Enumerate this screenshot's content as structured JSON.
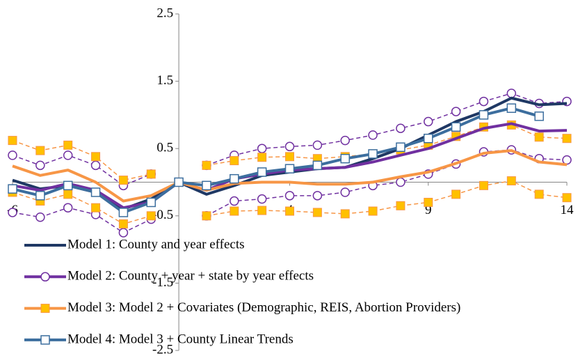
{
  "chart_data": {
    "type": "line",
    "x": [
      -6,
      -5,
      -4,
      -3,
      -2,
      -1,
      0,
      1,
      2,
      3,
      4,
      5,
      6,
      7,
      8,
      9,
      10,
      11,
      12,
      13,
      14
    ],
    "xlim": [
      -6,
      14
    ],
    "xticks": [
      -6,
      4,
      9,
      14
    ],
    "ylim": [
      -2.5,
      2.5
    ],
    "yticks": [
      -2.5,
      -1.5,
      -0.5,
      0.5,
      1.5,
      2.5
    ],
    "series": [
      {
        "name": "Model 1: County and year effects",
        "color": "#1f3864",
        "marker": "none",
        "values": [
          0.03,
          -0.1,
          -0.05,
          -0.15,
          -0.4,
          -0.25,
          0,
          -0.18,
          -0.05,
          0.1,
          0.15,
          0.2,
          0.22,
          0.35,
          0.5,
          0.7,
          0.9,
          1.05,
          1.25,
          1.15,
          1.17
        ]
      },
      {
        "name": "Model 2: County + year + state by year effects",
        "color": "#7030a0",
        "marker": "circle",
        "values": [
          -0.05,
          -0.12,
          -0.02,
          -0.12,
          -0.38,
          -0.3,
          0,
          -0.12,
          0.05,
          0.12,
          0.18,
          0.2,
          0.22,
          0.3,
          0.4,
          0.5,
          0.65,
          0.8,
          0.87,
          0.76,
          0.77
        ],
        "ci_upper": [
          0.4,
          0.25,
          0.4,
          0.25,
          -0.05,
          0.12,
          null,
          0.25,
          0.4,
          0.5,
          0.53,
          0.55,
          0.62,
          0.7,
          0.8,
          0.9,
          1.05,
          1.2,
          1.32,
          1.17,
          1.2
        ],
        "ci_lower": [
          -0.45,
          -0.52,
          -0.38,
          -0.48,
          -0.75,
          -0.55,
          null,
          -0.5,
          -0.28,
          -0.25,
          -0.2,
          -0.2,
          -0.15,
          -0.05,
          0.0,
          0.12,
          0.27,
          0.45,
          0.48,
          0.35,
          0.33
        ]
      },
      {
        "name": "Model 3: Model 2 + Covariates (Demographic, REIS, Abortion Providers)",
        "color": "#f79646",
        "marker": "square",
        "values": [
          0.24,
          0.1,
          0.18,
          0.0,
          -0.28,
          -0.2,
          0,
          -0.12,
          -0.02,
          0.0,
          0.0,
          -0.03,
          -0.03,
          0.0,
          0.08,
          0.15,
          0.28,
          0.43,
          0.47,
          0.3,
          0.26
        ],
        "ci_upper": [
          0.62,
          0.47,
          0.55,
          0.38,
          0.03,
          0.12,
          null,
          0.25,
          0.32,
          0.37,
          0.38,
          0.35,
          0.38,
          0.42,
          0.48,
          0.55,
          0.68,
          0.82,
          0.85,
          0.67,
          0.65
        ],
        "ci_lower": [
          -0.15,
          -0.28,
          -0.18,
          -0.38,
          -0.62,
          -0.5,
          null,
          -0.5,
          -0.43,
          -0.42,
          -0.43,
          -0.45,
          -0.47,
          -0.43,
          -0.35,
          -0.3,
          -0.18,
          -0.05,
          0.02,
          -0.18,
          -0.23
        ]
      },
      {
        "name": "Model 4: Model 3 + County Linear Trends",
        "color": "#3c6e9e",
        "marker": "open-square",
        "values": [
          -0.1,
          -0.2,
          -0.05,
          -0.15,
          -0.45,
          -0.3,
          0,
          -0.05,
          0.05,
          0.15,
          0.2,
          0.25,
          0.35,
          0.42,
          0.52,
          0.65,
          0.82,
          1.0,
          1.1,
          0.98,
          null
        ]
      }
    ]
  }
}
